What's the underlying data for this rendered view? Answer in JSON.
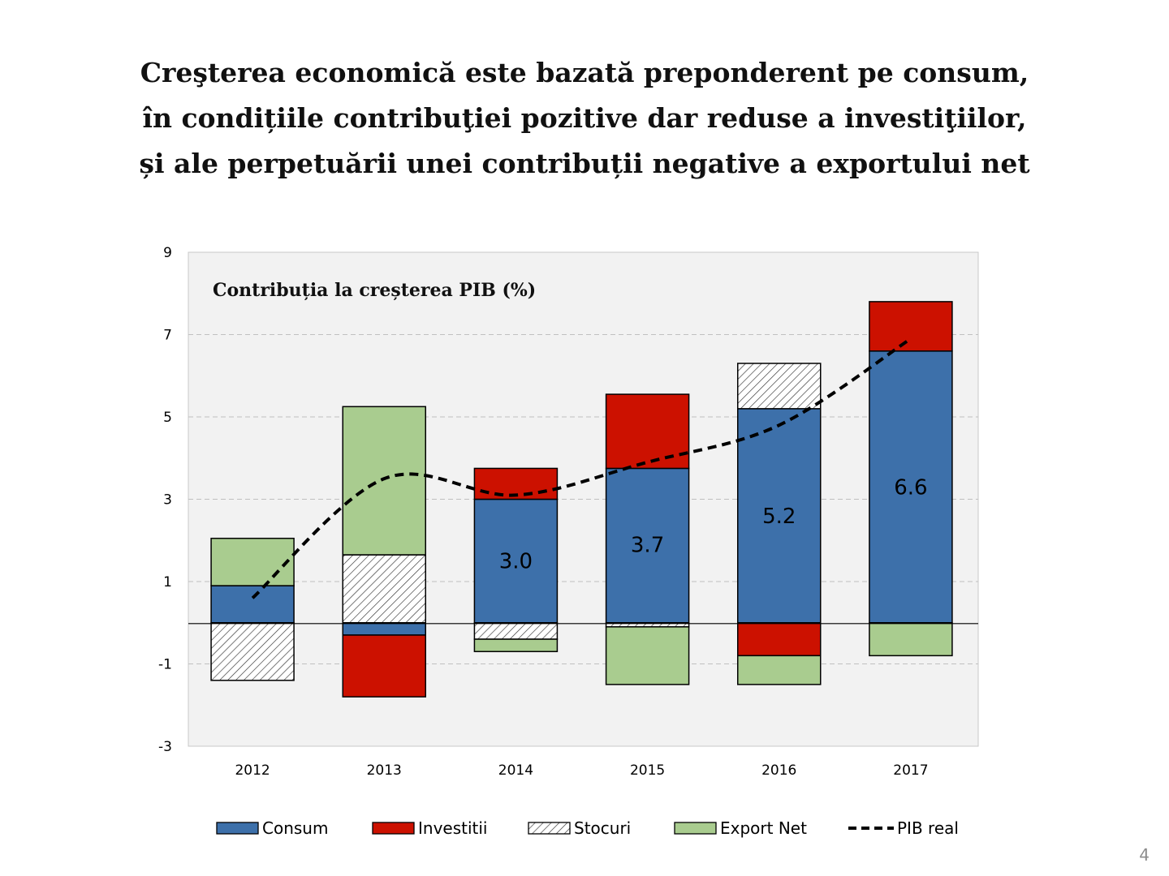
{
  "slide": {
    "title_lines": [
      "Creşterea economică este bazată preponderent pe consum,",
      "în condițiile contribuţiei pozitive dar reduse a investiţiilor,",
      "și ale perpetuării unei contribuții negative a exportului net"
    ],
    "page_number": "4"
  },
  "chart_data": {
    "type": "bar",
    "stacked": true,
    "title": "Contribuția la creșterea PIB (%)",
    "xlabel": "",
    "ylabel": "",
    "categories": [
      "2012",
      "2013",
      "2014",
      "2015",
      "2016",
      "2017"
    ],
    "ylim": [
      -3,
      9
    ],
    "yticks": [
      -3,
      -1,
      1,
      3,
      5,
      7,
      9
    ],
    "grid": true,
    "legend_position": "bottom",
    "series": [
      {
        "name": "Consum",
        "kind": "bar",
        "color": "#3d70aa",
        "values": [
          0.9,
          -0.3,
          3.0,
          3.75,
          5.2,
          6.6
        ]
      },
      {
        "name": "Investitii",
        "kind": "bar",
        "color": "#cc1100",
        "values": [
          0.0,
          -1.5,
          0.75,
          1.8,
          -0.8,
          1.2
        ]
      },
      {
        "name": "Stocuri",
        "kind": "bar",
        "pattern": "hatch",
        "values": [
          -1.4,
          1.65,
          -0.4,
          -0.1,
          1.1,
          0.0
        ]
      },
      {
        "name": "Export Net",
        "kind": "bar",
        "color": "#a9cc8f",
        "values": [
          1.15,
          3.6,
          -0.3,
          -1.4,
          -0.7,
          -0.8
        ]
      },
      {
        "name": "PIB real",
        "kind": "line",
        "style": "dashed",
        "color": "#000000",
        "values": [
          0.6,
          3.5,
          3.1,
          3.9,
          4.8,
          6.9
        ]
      }
    ],
    "data_labels": [
      {
        "category": "2014",
        "text": "3.0",
        "y": 1.5
      },
      {
        "category": "2015",
        "text": "3.7",
        "y": 1.9
      },
      {
        "category": "2016",
        "text": "5.2",
        "y": 2.6
      },
      {
        "category": "2017",
        "text": "6.6",
        "y": 3.3
      }
    ]
  }
}
